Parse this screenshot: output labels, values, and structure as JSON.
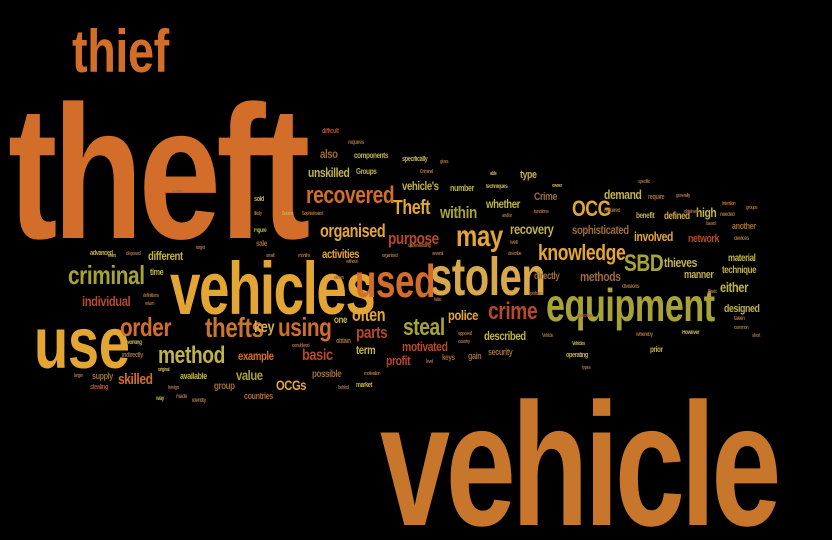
{
  "colors": {
    "background": "#000000",
    "orange": "#d36d2a",
    "amber": "#c7762c",
    "gold": "#e3a635",
    "olive": "#a7a336",
    "rust": "#b5492d",
    "khaki": "#c0b24a"
  },
  "words": {
    "theft": "theft",
    "vehicle": "vehicle",
    "vehicles": "vehicles",
    "thief": "thief",
    "use": "use",
    "stolen": "stolen",
    "used": "used",
    "equipment": "equipment",
    "criminal": "criminal",
    "thefts": "thefts",
    "order": "order",
    "method": "method",
    "using": "using",
    "may": "may",
    "crime": "crime",
    "steal": "steal",
    "recovered": "recovered",
    "organised": "organised",
    "knowledge": "knowledge",
    "sbd": "SBD",
    "ocg": "OCG",
    "theft_cap": "Theft",
    "often": "often",
    "within": "within",
    "purpose": "purpose",
    "police": "police",
    "parts": "parts",
    "skilled": "skilled",
    "basic": "basic",
    "key": "key",
    "value": "value",
    "ocgs": "OCGs",
    "individual": "individual",
    "example": "example",
    "different": "different",
    "activities": "activities",
    "unskilled": "unskilled",
    "also": "also",
    "recovery": "recovery",
    "whether": "whether",
    "vehicles_poss": "vehicle's",
    "number": "number",
    "sophisticated": "sophisticated",
    "involved": "involved",
    "network": "network",
    "thieves": "thieves",
    "either": "either",
    "methods": "methods",
    "directly": "directly",
    "defined": "defined",
    "demand": "demand",
    "high": "high",
    "manner": "manner",
    "technique": "technique",
    "designed": "designed",
    "material": "material",
    "another": "another",
    "motivated": "motivated",
    "described": "described",
    "profit": "profit",
    "term": "term",
    "group": "group",
    "possible": "possible",
    "type": "type",
    "crime_cap": "Crime",
    "gain": "gain",
    "security": "security",
    "keys": "keys",
    "available": "available",
    "supply": "supply",
    "countries": "countries",
    "one": "one",
    "obtain": "obtain",
    "components": "components",
    "groups": "Groups",
    "specifically": "specifically",
    "requires": "requires",
    "difficult": "difficult",
    "sold": "sold",
    "sale": "sale",
    "time": "time",
    "advanced": "advanced",
    "working": "working",
    "indirectly": "indirectly",
    "stealing": "stealing",
    "way": "way",
    "made": "made",
    "identity": "identity",
    "foreign": "foreign",
    "original": "original",
    "target": "target",
    "figure": "Figure",
    "source": "Source",
    "sophisticated_cap": "Sophisticated",
    "even": "even",
    "disposed": "disposed",
    "return": "return",
    "definitions": "definitions",
    "likely": "likely",
    "access": "access",
    "small": "small",
    "months": "months",
    "considered": "considered",
    "without": "without",
    "understanding": "understanding",
    "several": "several",
    "criminal_cap": "Criminal",
    "gives": "gives",
    "able": "able",
    "techniques": "techniques",
    "and_or": "and/or",
    "functions": "functions",
    "well": "well",
    "describe": "describe",
    "owner": "owner",
    "describes": "describes",
    "perform": "perform",
    "divisions": "divisions",
    "required": "required",
    "benefit": "benefit",
    "require": "require",
    "specific": "specific",
    "generally": "generally",
    "based": "based",
    "intention": "intention",
    "needed": "needed",
    "groups_small": "groups",
    "devices": "devices",
    "basic_cap": "Basic",
    "taken": "taken",
    "common": "common",
    "short": "short",
    "however": "However",
    "prior": "prior",
    "whereby": "whereby",
    "obtained": "obtained",
    "operating": "operating",
    "types": "types",
    "vehicles_cap": "Vehicles",
    "vehicle_small": "Vehicle",
    "false": "false",
    "opposed": "opposed",
    "country": "country",
    "level": "level",
    "behind": "behind",
    "motivation": "motivation",
    "market": "market",
    "larger": "larger",
    "others": "others",
    "within_small": "within"
  }
}
